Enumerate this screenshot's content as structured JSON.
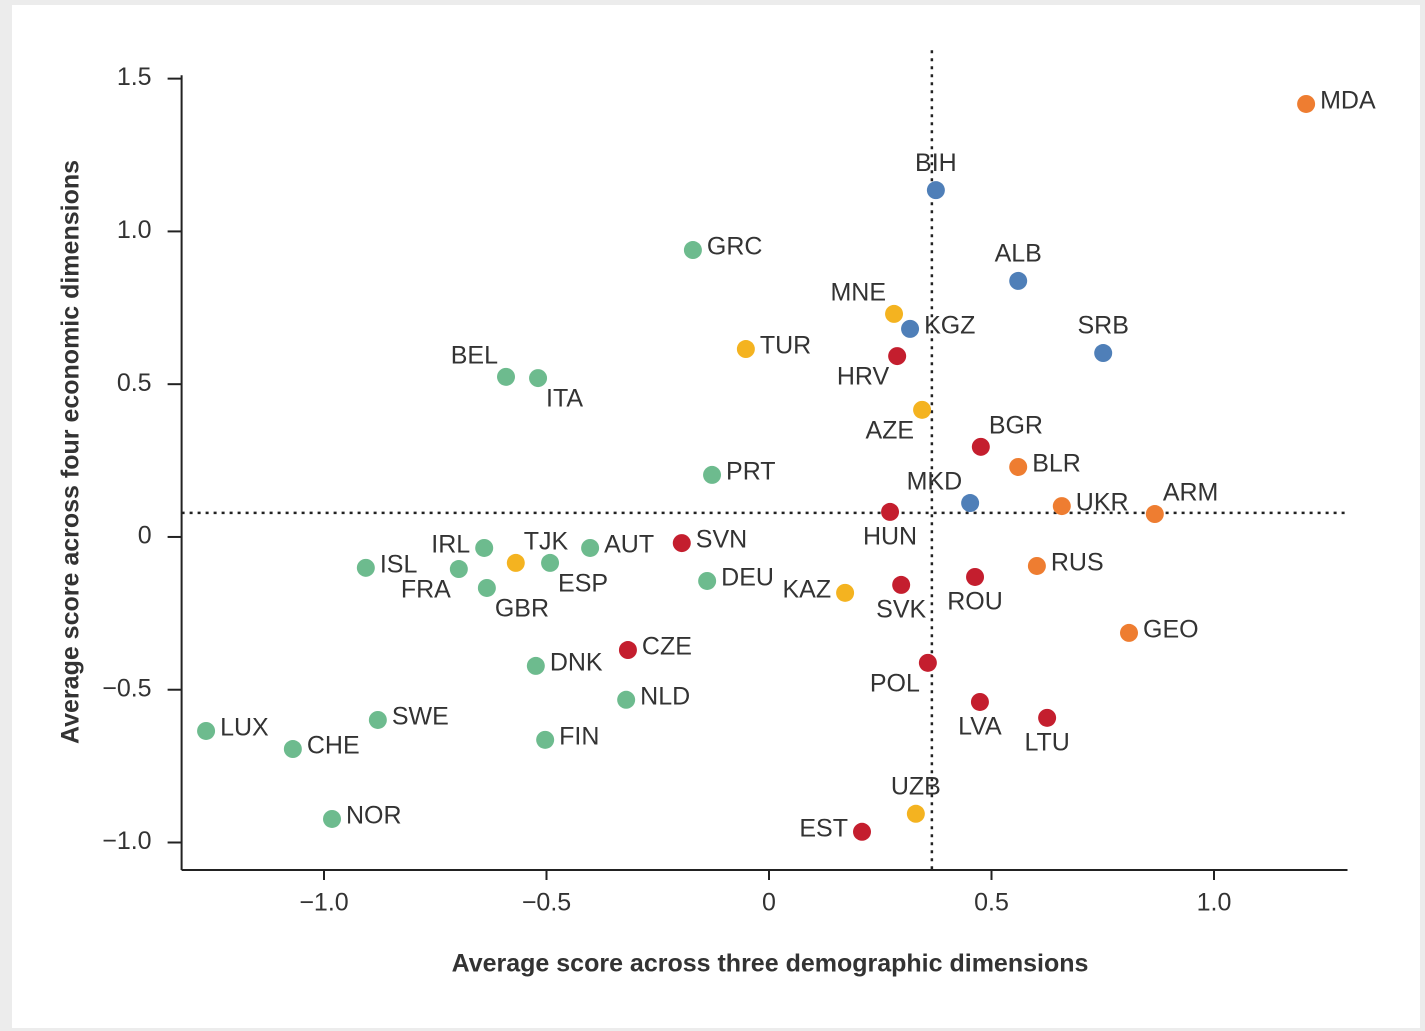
{
  "chart_data": {
    "type": "scatter",
    "xlabel": "Average score across three demographic dimensions",
    "ylabel": "Average score across four economic dimensions",
    "xlim": [
      -1.32,
      1.3
    ],
    "ylim": [
      -1.09,
      1.56
    ],
    "xticks": [
      {
        "value": -1.0,
        "label": "−1.0"
      },
      {
        "value": -0.5,
        "label": "−0.5"
      },
      0,
      0.5,
      {
        "value": 1.0,
        "label": "1.0"
      }
    ],
    "yticks": [
      {
        "value": -1.0,
        "label": "−1.0"
      },
      {
        "value": -0.5,
        "label": "−0.5"
      },
      0,
      0.5,
      {
        "value": 1.0,
        "label": "1.0"
      },
      1.5
    ],
    "vline": 0.366,
    "hline": 0.079,
    "points": [
      {
        "label": "MDA",
        "x": 1.207,
        "y": 1.417,
        "color": "#ee7d31"
      },
      {
        "label": "BIH",
        "x": 0.375,
        "y": 1.135,
        "color": "#4f7fb8"
      },
      {
        "label": "GRC",
        "x": -0.171,
        "y": 0.939,
        "color": "#6dbb8e"
      },
      {
        "label": "ALB",
        "x": 0.56,
        "y": 0.838,
        "color": "#4f7fb8"
      },
      {
        "label": "MNE",
        "x": 0.281,
        "y": 0.73,
        "color": "#f4b320"
      },
      {
        "label": "KGZ",
        "x": 0.317,
        "y": 0.681,
        "color": "#4f7fb8"
      },
      {
        "label": "SRB",
        "x": 0.751,
        "y": 0.602,
        "color": "#4f7fb8"
      },
      {
        "label": "TUR",
        "x": -0.052,
        "y": 0.615,
        "color": "#f4b320"
      },
      {
        "label": "HRV",
        "x": 0.288,
        "y": 0.592,
        "color": "#c41e2e"
      },
      {
        "label": "BEL",
        "x": -0.591,
        "y": 0.524,
        "color": "#6dbb8e"
      },
      {
        "label": "ITA",
        "x": -0.519,
        "y": 0.52,
        "color": "#6dbb8e"
      },
      {
        "label": "AZE",
        "x": 0.344,
        "y": 0.416,
        "color": "#f4b320"
      },
      {
        "label": "BGR",
        "x": 0.476,
        "y": 0.295,
        "color": "#c41e2e"
      },
      {
        "label": "BLR",
        "x": 0.56,
        "y": 0.229,
        "color": "#ee7d31"
      },
      {
        "label": "PRT",
        "x": -0.128,
        "y": 0.203,
        "color": "#6dbb8e"
      },
      {
        "label": "MKD",
        "x": 0.452,
        "y": 0.111,
        "color": "#4f7fb8"
      },
      {
        "label": "UKR",
        "x": 0.658,
        "y": 0.101,
        "color": "#ee7d31"
      },
      {
        "label": "ARM",
        "x": 0.867,
        "y": 0.075,
        "color": "#ee7d31"
      },
      {
        "label": "HUN",
        "x": 0.272,
        "y": 0.082,
        "color": "#c41e2e"
      },
      {
        "label": "IRL",
        "x": -0.64,
        "y": -0.036,
        "color": "#6dbb8e"
      },
      {
        "label": "TJK",
        "x": -0.569,
        "y": -0.085,
        "color": "#f4b320"
      },
      {
        "label": "AUT",
        "x": -0.402,
        "y": -0.036,
        "color": "#6dbb8e"
      },
      {
        "label": "SVN",
        "x": -0.196,
        "y": -0.02,
        "color": "#c41e2e"
      },
      {
        "label": "ESP",
        "x": -0.492,
        "y": -0.085,
        "color": "#6dbb8e"
      },
      {
        "label": "ISL",
        "x": -0.906,
        "y": -0.101,
        "color": "#6dbb8e"
      },
      {
        "label": "FRA",
        "x": -0.697,
        "y": -0.105,
        "color": "#6dbb8e"
      },
      {
        "label": "GBR",
        "x": -0.634,
        "y": -0.167,
        "color": "#6dbb8e"
      },
      {
        "label": "DEU",
        "x": -0.139,
        "y": -0.144,
        "color": "#6dbb8e"
      },
      {
        "label": "RUS",
        "x": 0.602,
        "y": -0.095,
        "color": "#ee7d31"
      },
      {
        "label": "KAZ",
        "x": 0.171,
        "y": -0.183,
        "color": "#f4b320"
      },
      {
        "label": "SVK",
        "x": 0.297,
        "y": -0.157,
        "color": "#c41e2e"
      },
      {
        "label": "ROU",
        "x": 0.463,
        "y": -0.131,
        "color": "#c41e2e"
      },
      {
        "label": "GEO",
        "x": 0.809,
        "y": -0.314,
        "color": "#ee7d31"
      },
      {
        "label": "CZE",
        "x": -0.317,
        "y": -0.37,
        "color": "#c41e2e"
      },
      {
        "label": "DNK",
        "x": -0.524,
        "y": -0.422,
        "color": "#6dbb8e"
      },
      {
        "label": "POL",
        "x": 0.357,
        "y": -0.412,
        "color": "#c41e2e"
      },
      {
        "label": "NLD",
        "x": -0.321,
        "y": -0.533,
        "color": "#6dbb8e"
      },
      {
        "label": "LVA",
        "x": 0.474,
        "y": -0.54,
        "color": "#c41e2e"
      },
      {
        "label": "LTU",
        "x": 0.625,
        "y": -0.592,
        "color": "#c41e2e"
      },
      {
        "label": "SWE",
        "x": -0.879,
        "y": -0.599,
        "color": "#6dbb8e"
      },
      {
        "label": "LUX",
        "x": -1.265,
        "y": -0.635,
        "color": "#6dbb8e"
      },
      {
        "label": "FIN",
        "x": -0.503,
        "y": -0.664,
        "color": "#6dbb8e"
      },
      {
        "label": "CHE",
        "x": -1.07,
        "y": -0.694,
        "color": "#6dbb8e"
      },
      {
        "label": "UZB",
        "x": 0.33,
        "y": -0.906,
        "color": "#f4b320"
      },
      {
        "label": "NOR",
        "x": -0.982,
        "y": -0.923,
        "color": "#6dbb8e"
      },
      {
        "label": "EST",
        "x": 0.209,
        "y": -0.965,
        "color": "#c41e2e"
      }
    ]
  }
}
